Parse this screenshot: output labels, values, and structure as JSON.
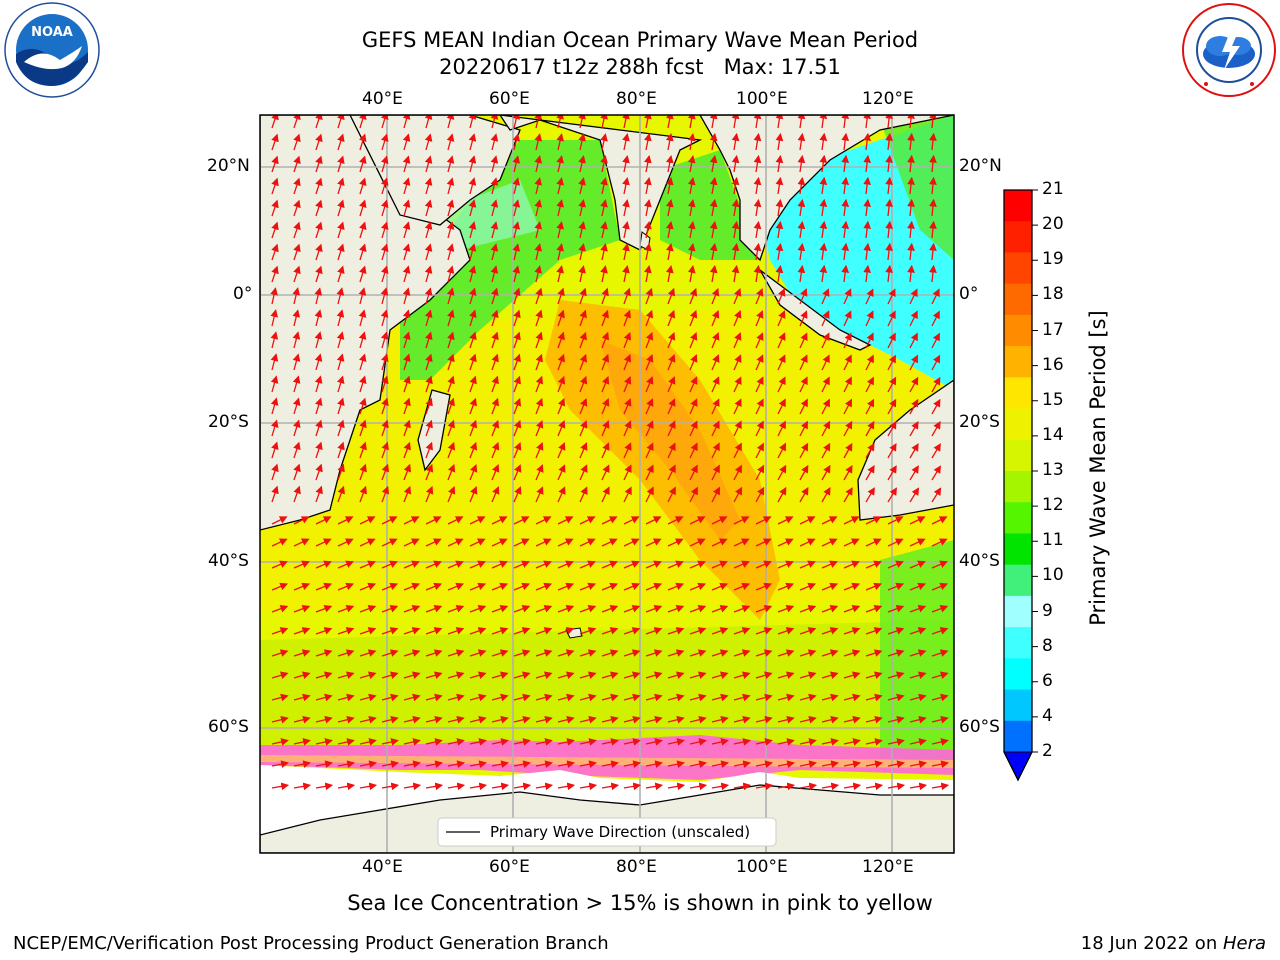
{
  "title": {
    "line1": "GEFS MEAN Indian Ocean Primary Wave Mean Period",
    "line2": "20220617 t12z 288h fcst   Max: 17.51"
  },
  "map": {
    "lon_labels": [
      "40°E",
      "60°E",
      "80°E",
      "100°E",
      "120°E"
    ],
    "lat_labels": [
      "20°N",
      "0°",
      "20°S",
      "40°S",
      "60°S"
    ],
    "legend_label": "Primary Wave Direction (unscaled)",
    "vector_color": "#ee1111",
    "land_color": "#efefe1",
    "ice_color": "#ffffff"
  },
  "colorbar": {
    "label": "Primary Wave Mean Period [s]",
    "ticks": [
      "21",
      "20",
      "19",
      "18",
      "17",
      "16",
      "15",
      "14",
      "13",
      "12",
      "11",
      "10",
      "9",
      "8",
      "6",
      "4",
      "2"
    ],
    "colors": [
      "#ff0000",
      "#ff2000",
      "#ff4500",
      "#ff6a00",
      "#ff8c00",
      "#ffb300",
      "#ffe600",
      "#eef200",
      "#d6f500",
      "#a6f500",
      "#55f500",
      "#00e400",
      "#40f07a",
      "#a0ffff",
      "#40ffff",
      "#00ffff",
      "#00c8ff",
      "#0070ff"
    ],
    "extend_color": "#0000ff"
  },
  "footer": {
    "note": "Sea Ice Concentration > 15% is shown in pink to yellow",
    "left": "NCEP/EMC/Verification Post Processing Product Generation Branch",
    "right_date": "18 Jun 2022 on ",
    "right_host": "Hera"
  },
  "logos": {
    "noaa": "NOAA",
    "nws": "NATIONAL WEATHER SERVICE"
  }
}
